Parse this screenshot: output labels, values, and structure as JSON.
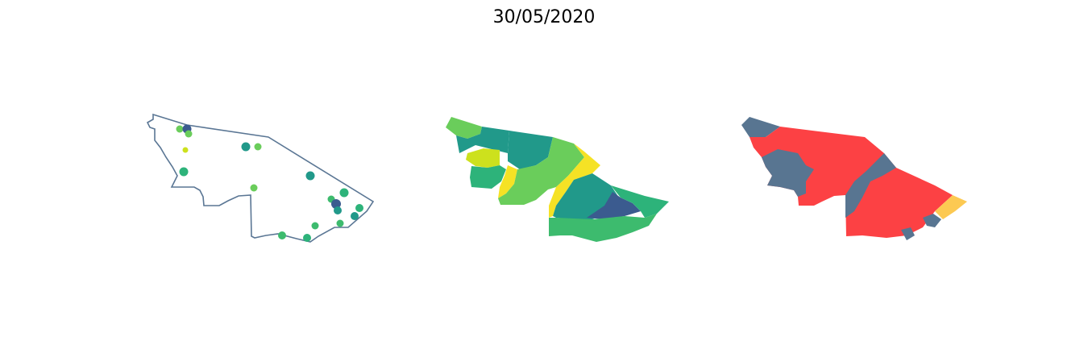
{
  "title": "30/05/2020",
  "colors": {
    "outline": "#5a7694",
    "viridis_dark": "#3b5b8f",
    "viridis_teal": "#21998a",
    "viridis_green": "#2db37a",
    "viridis_mid_green": "#3dbb6e",
    "viridis_light_green": "#6acd5b",
    "viridis_lime": "#cde11d",
    "viridis_yellow": "#f5e225",
    "red": "#fc4144",
    "slate": "#587591",
    "amber": "#fcc952"
  },
  "panels": [
    {
      "kind": "outline-with-points"
    },
    {
      "kind": "choropleth-viridis"
    },
    {
      "kind": "choropleth-categorical"
    }
  ],
  "markers": [
    {
      "color": "viridis_light_green"
    },
    {
      "color": "viridis_dark"
    },
    {
      "color": "viridis_light_green"
    },
    {
      "color": "viridis_lime"
    },
    {
      "color": "viridis_teal"
    },
    {
      "color": "viridis_light_green"
    },
    {
      "color": "viridis_green"
    },
    {
      "color": "viridis_teal"
    },
    {
      "color": "viridis_light_green"
    },
    {
      "color": "viridis_green"
    },
    {
      "color": "viridis_mid_green"
    },
    {
      "color": "viridis_dark"
    },
    {
      "color": "viridis_teal"
    },
    {
      "color": "viridis_green"
    },
    {
      "color": "viridis_teal"
    },
    {
      "color": "viridis_mid_green"
    },
    {
      "color": "viridis_mid_green"
    },
    {
      "color": "viridis_mid_green"
    },
    {
      "color": "viridis_green"
    }
  ]
}
